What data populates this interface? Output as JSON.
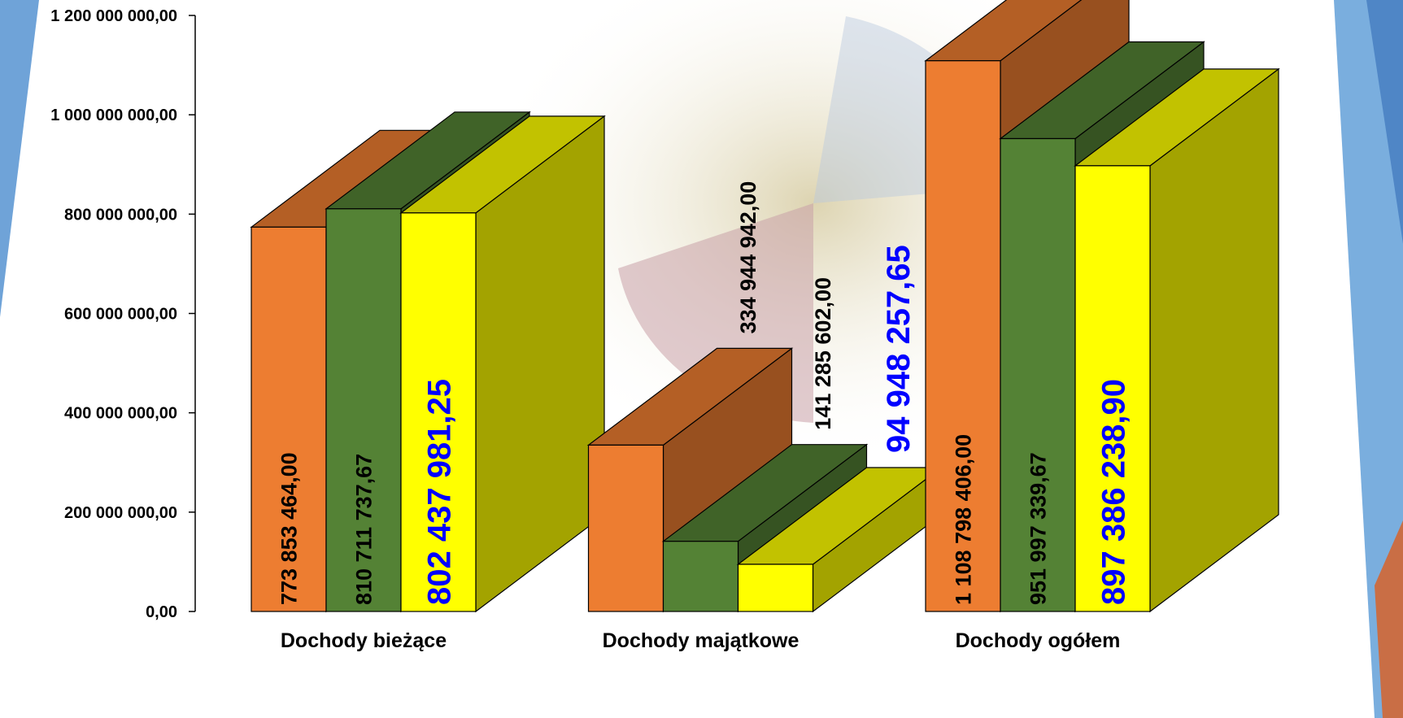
{
  "chart_data": {
    "type": "bar3d",
    "categories": [
      "Dochody bieżące",
      "Dochody majątkowe",
      "Dochody ogółem"
    ],
    "series": [
      {
        "color": "#ED7D31",
        "values": [
          773853464.0,
          334944942.0,
          1108798406.0
        ],
        "value_labels": [
          "773 853 464,00",
          "334 944 942,00",
          "1 108 798 406,00"
        ]
      },
      {
        "color": "#548235",
        "values": [
          810711737.67,
          141285602.0,
          951997339.67
        ],
        "value_labels": [
          "810 711 737,67",
          "141 285 602,00",
          "951 997 339,67"
        ]
      },
      {
        "color": "#FFFF00",
        "values": [
          802437981.25,
          94948257.65,
          897386238.9
        ],
        "value_labels": [
          "802 437 981,25",
          "94 948 257,65",
          "897 386 238,90"
        ]
      }
    ],
    "ylim": [
      0,
      1200000000
    ],
    "yticks": [
      {
        "value": 0,
        "label": "0,00"
      },
      {
        "value": 200000000,
        "label": "200 000 000,00"
      },
      {
        "value": 400000000,
        "label": "400 000 000,00"
      },
      {
        "value": 600000000,
        "label": "600 000 000,00"
      },
      {
        "value": 800000000,
        "label": "800 000 000,00"
      },
      {
        "value": 1000000000,
        "label": "1 000 000 000,00"
      },
      {
        "value": 1200000000,
        "label": "1 200 000 000,00"
      }
    ]
  }
}
